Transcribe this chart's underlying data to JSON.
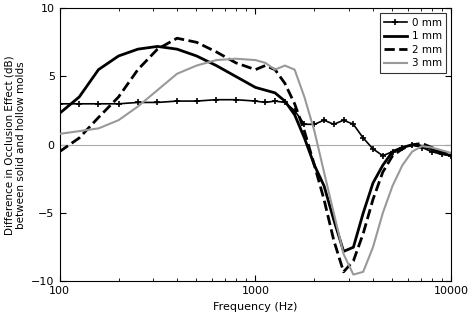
{
  "xlabel": "Frequency (Hz)",
  "ylabel": "Difference in Occlusion Effect (dB)\nbetween solid and hollow molds",
  "xmin": 100,
  "xmax": 10000,
  "ymin": -10,
  "ymax": 10,
  "yticks": [
    -10,
    -5,
    0,
    5,
    10
  ],
  "background_color": "#ffffff",
  "series": [
    {
      "label": "0 mm",
      "color": "#000000",
      "linestyle": "-",
      "linewidth": 1.2,
      "marker": "+",
      "markersize": 4,
      "markeredgewidth": 1.2,
      "freqs": [
        100,
        126,
        158,
        200,
        251,
        316,
        398,
        501,
        631,
        794,
        1000,
        1122,
        1259,
        1413,
        1585,
        1778,
        2000,
        2239,
        2512,
        2818,
        3162,
        3548,
        3981,
        4467,
        5012,
        5623,
        6310,
        7079,
        7943,
        8913,
        10000
      ],
      "values": [
        3.0,
        3.0,
        3.0,
        3.0,
        3.1,
        3.1,
        3.2,
        3.2,
        3.3,
        3.3,
        3.2,
        3.1,
        3.2,
        3.1,
        2.5,
        1.5,
        1.5,
        1.8,
        1.5,
        1.8,
        1.5,
        0.5,
        -0.3,
        -0.8,
        -0.5,
        -0.2,
        0.0,
        -0.2,
        -0.5,
        -0.7,
        -0.8
      ]
    },
    {
      "label": "1 mm",
      "color": "#000000",
      "linestyle": "-",
      "linewidth": 2.0,
      "marker": null,
      "freqs": [
        100,
        126,
        158,
        200,
        251,
        316,
        398,
        501,
        631,
        794,
        1000,
        1122,
        1259,
        1413,
        1585,
        1778,
        2000,
        2239,
        2512,
        2818,
        3162,
        3548,
        3981,
        4467,
        5012,
        5623,
        6310,
        7079,
        7943,
        8913,
        10000
      ],
      "values": [
        2.3,
        3.5,
        5.5,
        6.5,
        7.0,
        7.2,
        7.0,
        6.5,
        5.8,
        5.0,
        4.2,
        4.0,
        3.8,
        3.2,
        2.2,
        0.5,
        -1.5,
        -3.0,
        -5.5,
        -7.8,
        -7.5,
        -5.0,
        -2.8,
        -1.5,
        -0.5,
        -0.2,
        0.0,
        -0.1,
        -0.3,
        -0.6,
        -0.8
      ]
    },
    {
      "label": "2 mm",
      "color": "#000000",
      "linestyle": "--",
      "linewidth": 2.0,
      "marker": null,
      "freqs": [
        100,
        126,
        158,
        200,
        251,
        316,
        398,
        501,
        631,
        794,
        1000,
        1122,
        1259,
        1413,
        1585,
        1778,
        2000,
        2239,
        2512,
        2818,
        3162,
        3548,
        3981,
        4467,
        5012,
        5623,
        6310,
        7079,
        7943,
        8913,
        10000
      ],
      "values": [
        -0.5,
        0.5,
        2.0,
        3.5,
        5.5,
        7.0,
        7.8,
        7.5,
        6.8,
        6.0,
        5.5,
        5.8,
        5.5,
        4.5,
        3.0,
        1.0,
        -1.5,
        -4.0,
        -7.0,
        -9.3,
        -8.5,
        -6.5,
        -4.0,
        -2.0,
        -0.8,
        -0.3,
        0.0,
        0.1,
        -0.2,
        -0.5,
        -0.7
      ]
    },
    {
      "label": "3 mm",
      "color": "#999999",
      "linestyle": "-",
      "linewidth": 1.5,
      "marker": null,
      "freqs": [
        100,
        126,
        158,
        200,
        251,
        316,
        398,
        501,
        631,
        794,
        1000,
        1122,
        1259,
        1413,
        1585,
        1778,
        2000,
        2239,
        2512,
        2818,
        3162,
        3548,
        3981,
        4467,
        5012,
        5623,
        6310,
        7079,
        7943,
        8913,
        10000
      ],
      "values": [
        0.8,
        1.0,
        1.2,
        1.8,
        2.8,
        4.0,
        5.2,
        5.8,
        6.2,
        6.3,
        6.2,
        6.0,
        5.5,
        5.8,
        5.5,
        3.5,
        1.0,
        -2.0,
        -5.0,
        -8.0,
        -9.5,
        -9.3,
        -7.5,
        -5.0,
        -3.0,
        -1.5,
        -0.5,
        -0.1,
        -0.2,
        -0.4,
        -0.6
      ]
    }
  ]
}
